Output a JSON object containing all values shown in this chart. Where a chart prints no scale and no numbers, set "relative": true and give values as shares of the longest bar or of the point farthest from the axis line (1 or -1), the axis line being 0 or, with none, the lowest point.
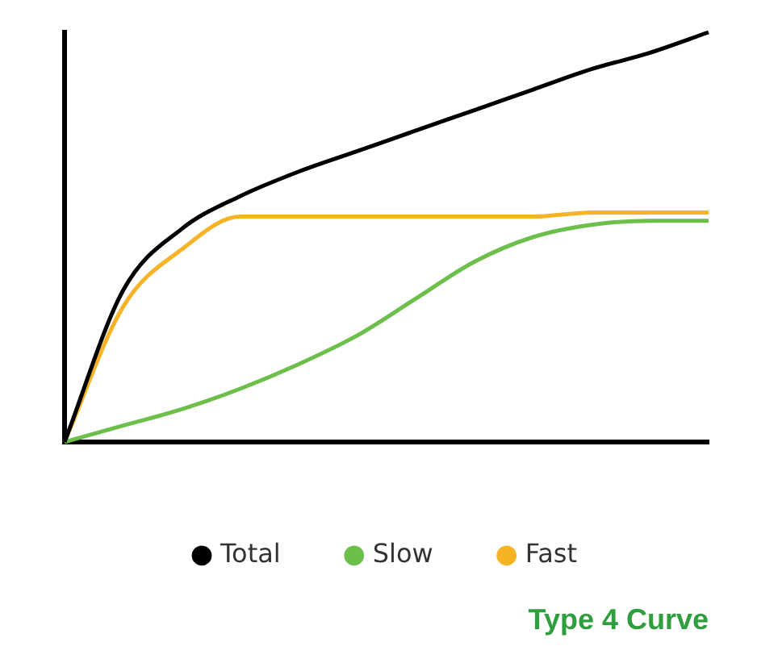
{
  "chart_data": {
    "type": "line",
    "title": "Type 4 Curve",
    "relative": true,
    "legend": "bottom",
    "marker": "none",
    "line_style": "solid",
    "grid": false,
    "categories": [
      null,
      null,
      null,
      null,
      null,
      null,
      null,
      null,
      null,
      null,
      null,
      null
    ],
    "series": [
      {
        "name": "Total",
        "color": "#000000",
        "values": [
          0,
          0.37,
          0.52,
          0.6,
          0.66,
          0.71,
          0.76,
          0.81,
          0.86,
          0.91,
          0.95,
          1
        ]
      },
      {
        "name": "Slow",
        "color": "#6cbf4a",
        "values": [
          0,
          0.04,
          0.08,
          0.13,
          0.19,
          0.26,
          0.35,
          0.44,
          0.5,
          0.53,
          0.54,
          0.54
        ]
      },
      {
        "name": "Fast",
        "color": "#f5b325",
        "values": [
          0,
          0.33,
          0.47,
          0.55,
          0.55,
          0.55,
          0.55,
          0.55,
          0.55,
          0.56,
          0.56,
          0.56
        ]
      }
    ]
  }
}
